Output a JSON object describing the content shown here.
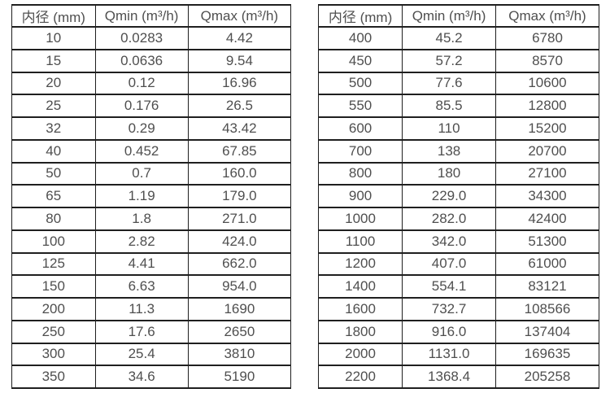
{
  "page": {
    "background_color": "#ffffff",
    "text_color": "#4f4f4f",
    "border_color": "#1f1f1f"
  },
  "chart_data": [
    {
      "type": "table",
      "columns": [
        "内径 (mm)",
        "Qmin (m³/h)",
        "Qmax (m³/h)"
      ],
      "rows": [
        [
          "10",
          "0.0283",
          "4.42"
        ],
        [
          "15",
          "0.0636",
          "9.54"
        ],
        [
          "20",
          "0.12",
          "16.96"
        ],
        [
          "25",
          "0.176",
          "26.5"
        ],
        [
          "32",
          "0.29",
          "43.42"
        ],
        [
          "40",
          "0.452",
          "67.85"
        ],
        [
          "50",
          "0.7",
          "160.0"
        ],
        [
          "65",
          "1.19",
          "179.0"
        ],
        [
          "80",
          "1.8",
          "271.0"
        ],
        [
          "100",
          "2.82",
          "424.0"
        ],
        [
          "125",
          "4.41",
          "662.0"
        ],
        [
          "150",
          "6.63",
          "954.0"
        ],
        [
          "200",
          "11.3",
          "1690"
        ],
        [
          "250",
          "17.6",
          "2650"
        ],
        [
          "300",
          "25.4",
          "3810"
        ],
        [
          "350",
          "34.6",
          "5190"
        ]
      ]
    },
    {
      "type": "table",
      "columns": [
        "内径 (mm)",
        "Qmin (m³/h)",
        "Qmax (m³/h)"
      ],
      "rows": [
        [
          "400",
          "45.2",
          "6780"
        ],
        [
          "450",
          "57.2",
          "8570"
        ],
        [
          "500",
          "77.6",
          "10600"
        ],
        [
          "550",
          "85.5",
          "12800"
        ],
        [
          "600",
          "110",
          "15200"
        ],
        [
          "700",
          "138",
          "20700"
        ],
        [
          "800",
          "180",
          "27100"
        ],
        [
          "900",
          "229.0",
          "34300"
        ],
        [
          "1000",
          "282.0",
          "42400"
        ],
        [
          "1100",
          "342.0",
          "51300"
        ],
        [
          "1200",
          "407.0",
          "61000"
        ],
        [
          "1400",
          "554.1",
          "83121"
        ],
        [
          "1600",
          "732.7",
          "108566"
        ],
        [
          "1800",
          "916.0",
          "137404"
        ],
        [
          "2000",
          "1131.0",
          "169635"
        ],
        [
          "2200",
          "1368.4",
          "205258"
        ]
      ]
    }
  ]
}
